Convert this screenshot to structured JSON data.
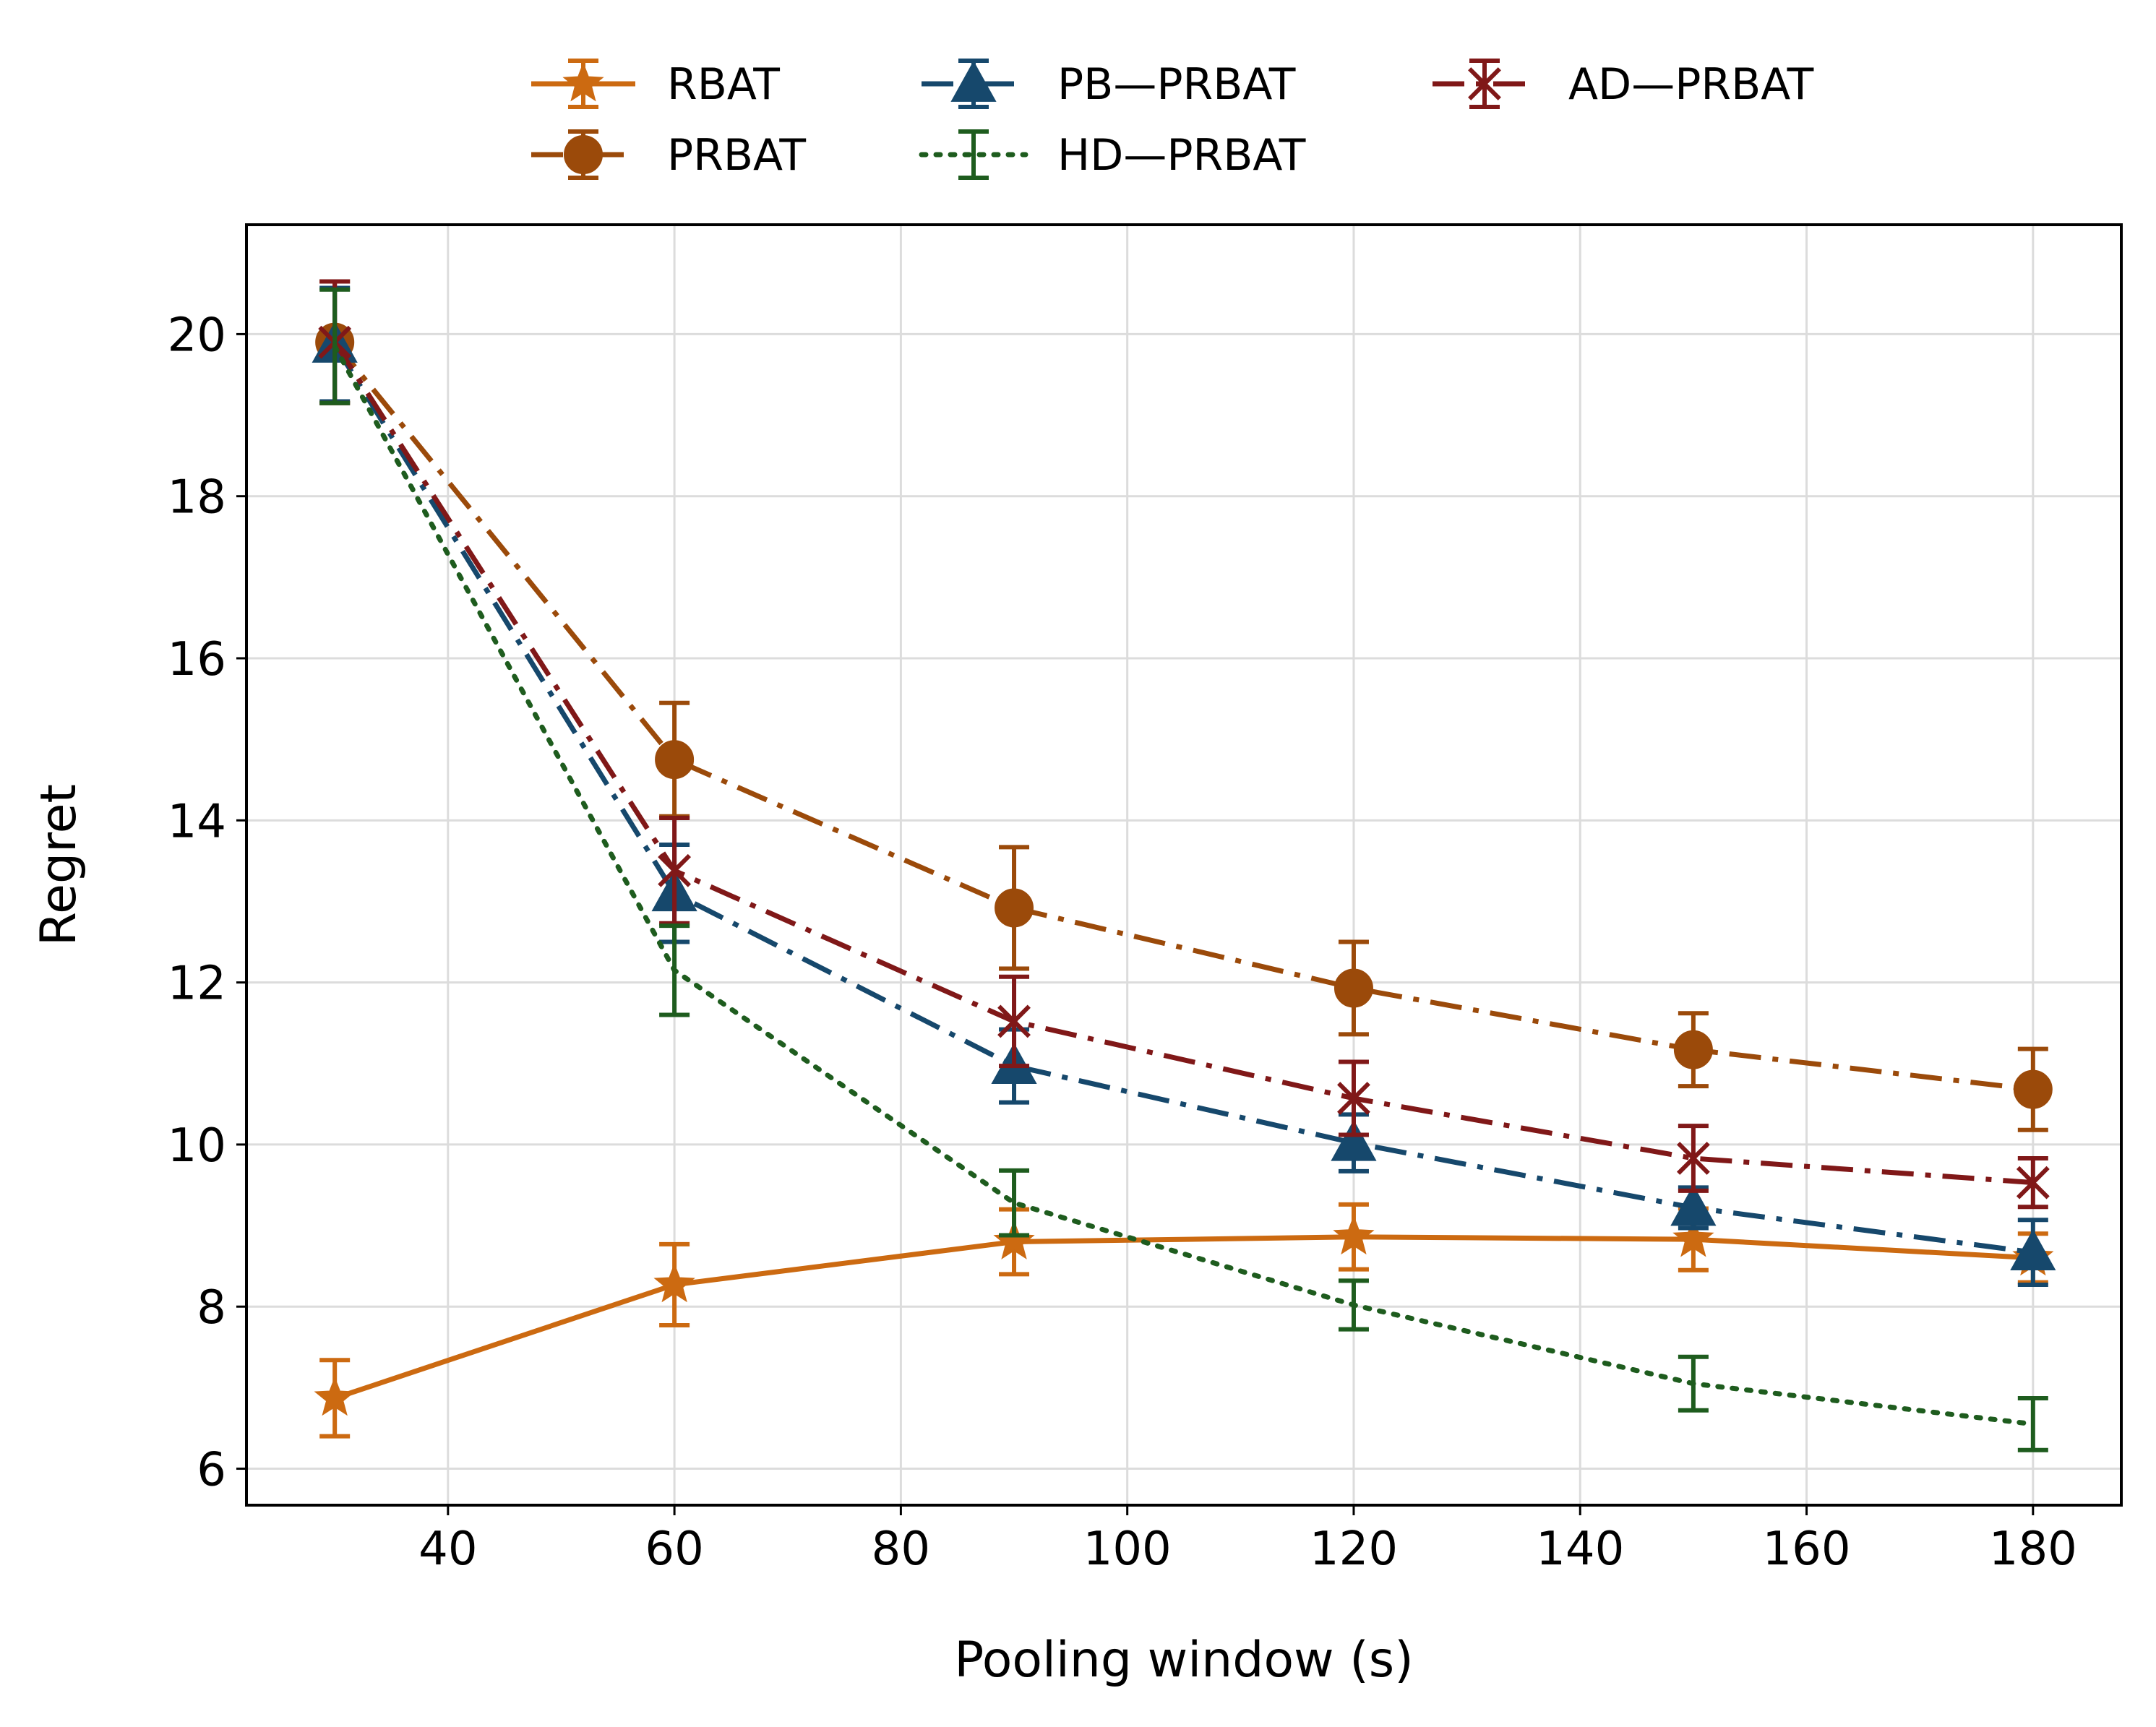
{
  "chart_data": {
    "type": "line",
    "title": "",
    "xlabel": "Pooling window (s)",
    "ylabel": "Regret",
    "xlim": [
      22.2,
      187.8
    ],
    "ylim": [
      5.55,
      21.35
    ],
    "x": [
      30,
      60,
      90,
      120,
      150,
      180
    ],
    "xticks": [
      40,
      60,
      80,
      100,
      120,
      140,
      160,
      180
    ],
    "yticks": [
      6,
      8,
      10,
      12,
      14,
      16,
      18,
      20
    ],
    "grid": true,
    "legend_position": "top-center",
    "series": [
      {
        "name": "RBAT",
        "color": "#cc6a11",
        "linestyle": "solid",
        "marker": "star",
        "values": [
          6.87,
          8.27,
          8.8,
          8.86,
          8.83,
          8.6
        ],
        "errors": [
          0.47,
          0.5,
          0.4,
          0.4,
          0.38,
          0.3
        ]
      },
      {
        "name": "PRBAT",
        "color": "#9b4a0a",
        "linestyle": "dashdot",
        "marker": "circle",
        "values": [
          19.9,
          14.75,
          12.92,
          11.93,
          11.17,
          10.68
        ],
        "errors": [
          0.75,
          0.7,
          0.75,
          0.57,
          0.45,
          0.5
        ]
      },
      {
        "name": "PB—PRBAT",
        "color": "#16486c",
        "linestyle": "dashdot",
        "marker": "triangle",
        "values": [
          19.87,
          13.1,
          10.97,
          10.02,
          9.22,
          8.67
        ],
        "errors": [
          0.7,
          0.6,
          0.45,
          0.35,
          0.25,
          0.4
        ]
      },
      {
        "name": "HD—PRBAT",
        "color": "#1e5c1e",
        "linestyle": "dotted",
        "marker": "none",
        "values": [
          19.85,
          12.15,
          9.28,
          8.02,
          7.05,
          6.55
        ],
        "errors": [
          0.7,
          0.55,
          0.4,
          0.3,
          0.33,
          0.32
        ]
      },
      {
        "name": "AD—PRBAT",
        "color": "#801818",
        "linestyle": "dashdot",
        "marker": "x",
        "values": [
          19.9,
          13.38,
          11.52,
          10.57,
          9.83,
          9.53
        ],
        "errors": [
          0.75,
          0.65,
          0.55,
          0.45,
          0.4,
          0.3
        ]
      }
    ]
  }
}
